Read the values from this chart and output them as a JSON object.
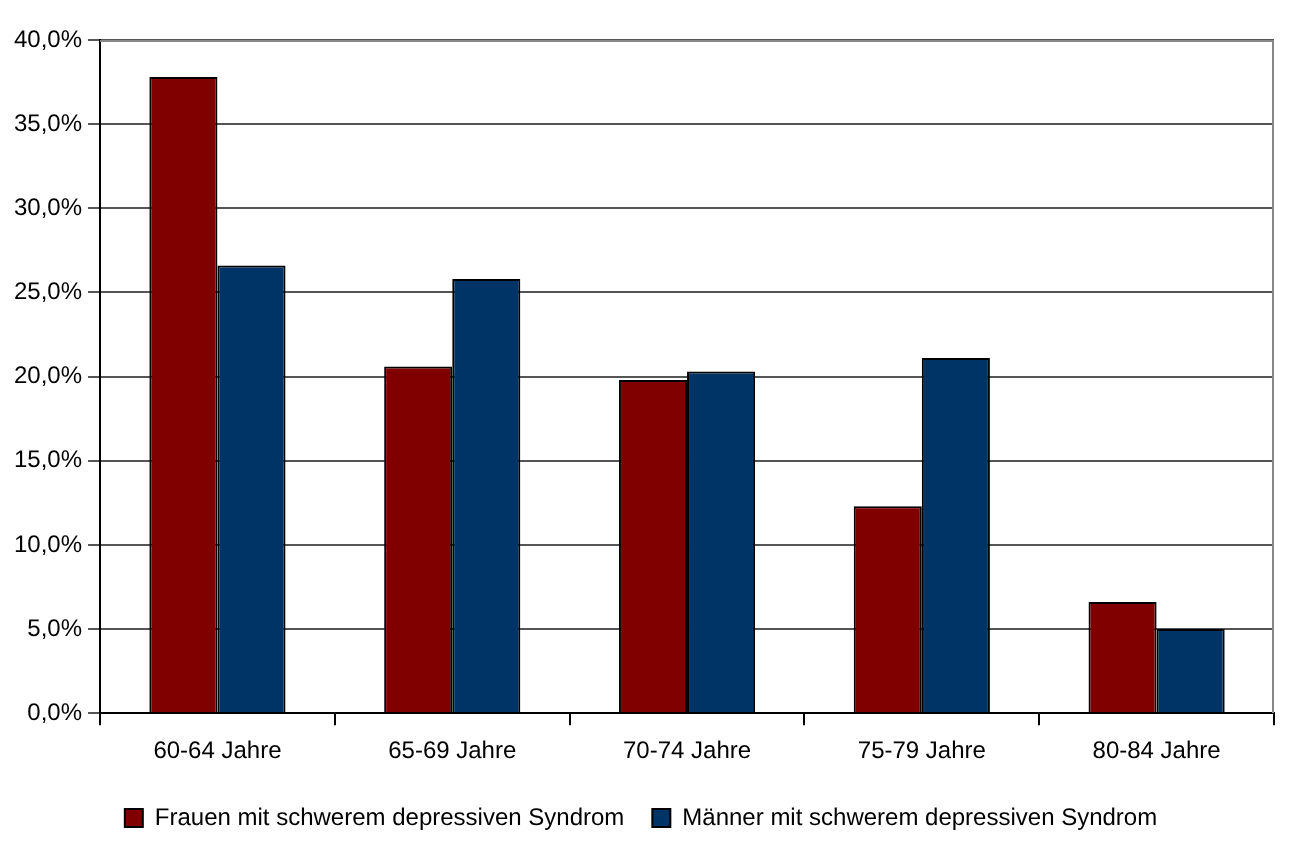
{
  "chart_data": {
    "type": "bar",
    "categories": [
      "60-64 Jahre",
      "65-69 Jahre",
      "70-74 Jahre",
      "75-79 Jahre",
      "80-84 Jahre"
    ],
    "series": [
      {
        "name": "Frauen mit schwerem depressiven Syndrom",
        "color": "#800000",
        "values": [
          37.8,
          20.6,
          19.8,
          12.3,
          6.6
        ]
      },
      {
        "name": "Männer mit schwerem depressiven Syndrom",
        "color": "#003366",
        "values": [
          26.6,
          25.8,
          20.3,
          21.1,
          5.0
        ]
      }
    ],
    "ylim": [
      0,
      40
    ],
    "yticks": [
      {
        "value": 0,
        "label": "0,0%"
      },
      {
        "value": 5,
        "label": "5,0%"
      },
      {
        "value": 10,
        "label": "10,0%"
      },
      {
        "value": 15,
        "label": "15,0%"
      },
      {
        "value": 20,
        "label": "20,0%"
      },
      {
        "value": 25,
        "label": "25,0%"
      },
      {
        "value": 30,
        "label": "30,0%"
      },
      {
        "value": 35,
        "label": "35,0%"
      },
      {
        "value": 40,
        "label": "40,0%"
      }
    ],
    "grid": "y",
    "legend": "bottom"
  }
}
